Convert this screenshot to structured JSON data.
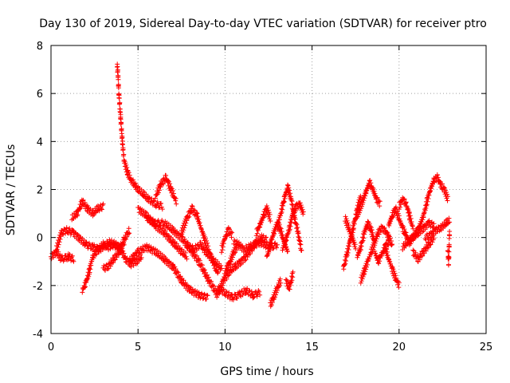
{
  "chart_data": {
    "type": "scatter",
    "title": "Day 130 of 2019, Sidereal Day-to-day VTEC variation (SDTVAR) for receiver ptro",
    "xlabel": "GPS time / hours",
    "ylabel": "SDTVAR / TECUs",
    "xlim": [
      0,
      25
    ],
    "ylim": [
      -4,
      8
    ],
    "xticks": [
      0,
      5,
      10,
      15,
      20,
      25
    ],
    "yticks": [
      -4,
      -2,
      0,
      2,
      4,
      6,
      8
    ],
    "grid": true,
    "marker": "+",
    "color": "#ff0000",
    "segments": [
      {
        "name": "s1",
        "x": [
          0.0,
          0.3,
          0.6,
          1.0,
          1.3
        ],
        "y": [
          -0.8,
          -0.6,
          -0.9,
          -0.8,
          -0.9
        ]
      },
      {
        "name": "s2",
        "x": [
          0.3,
          0.6,
          0.9,
          1.3,
          1.6,
          2.0,
          2.4,
          2.8
        ],
        "y": [
          -0.5,
          0.2,
          0.3,
          0.2,
          0.0,
          -0.3,
          -0.4,
          -0.5
        ]
      },
      {
        "name": "s3",
        "x": [
          1.2,
          1.5,
          1.8,
          2.1,
          2.4,
          2.7,
          3.0
        ],
        "y": [
          0.8,
          1.0,
          1.5,
          1.2,
          1.0,
          1.2,
          1.3
        ]
      },
      {
        "name": "s4",
        "x": [
          1.8,
          2.0,
          2.2,
          2.4,
          2.7,
          3.0,
          3.3,
          3.6,
          3.9,
          4.2
        ],
        "y": [
          -2.2,
          -1.9,
          -1.4,
          -0.8,
          -0.5,
          -0.3,
          -0.4,
          -0.3,
          -0.4,
          -0.3
        ]
      },
      {
        "name": "s5",
        "x": [
          2.8,
          3.1,
          3.4,
          3.7,
          4.0,
          4.3,
          4.6,
          4.9,
          5.2
        ],
        "y": [
          -0.5,
          -0.3,
          -0.2,
          -0.3,
          -0.5,
          -0.9,
          -1.1,
          -1.0,
          -0.8
        ]
      },
      {
        "name": "s6",
        "x": [
          3.8,
          3.85,
          3.9,
          4.0,
          4.1,
          4.2,
          4.4,
          4.6,
          4.8,
          5.0,
          5.3,
          5.6,
          6.0,
          6.4
        ],
        "y": [
          7.2,
          6.8,
          6.0,
          5.0,
          4.0,
          3.2,
          2.7,
          2.4,
          2.2,
          2.0,
          1.8,
          1.6,
          1.4,
          1.3
        ]
      },
      {
        "name": "s7",
        "x": [
          3.0,
          3.3,
          3.6,
          3.9,
          4.2,
          4.5
        ],
        "y": [
          -1.3,
          -1.2,
          -0.9,
          -0.6,
          -0.1,
          0.3
        ]
      },
      {
        "name": "s8",
        "x": [
          5.0,
          5.5,
          6.0,
          6.5,
          7.0,
          7.5,
          7.8
        ],
        "y": [
          1.2,
          0.9,
          0.5,
          0.2,
          -0.2,
          -0.6,
          -0.8
        ]
      },
      {
        "name": "s9",
        "x": [
          5.5,
          6.0,
          6.5,
          7.0,
          7.5,
          8.0,
          8.5,
          9.0,
          9.5
        ],
        "y": [
          0.8,
          0.6,
          0.6,
          0.3,
          0.0,
          -0.5,
          -1.0,
          -1.7,
          -2.3
        ]
      },
      {
        "name": "s10",
        "x": [
          6.0,
          6.3,
          6.6,
          6.9,
          7.2
        ],
        "y": [
          1.7,
          2.2,
          2.5,
          2.0,
          1.5
        ]
      },
      {
        "name": "s11",
        "x": [
          4.5,
          5.0,
          5.5,
          6.0,
          6.5,
          7.0,
          7.5,
          8.0,
          8.5,
          9.0
        ],
        "y": [
          -1.0,
          -0.6,
          -0.4,
          -0.6,
          -0.9,
          -1.2,
          -1.8,
          -2.2,
          -2.4,
          -2.5
        ]
      },
      {
        "name": "s12",
        "x": [
          7.5,
          7.8,
          8.1,
          8.4,
          8.7,
          9.0,
          9.3,
          9.6
        ],
        "y": [
          0.2,
          0.8,
          1.2,
          0.9,
          0.2,
          -0.4,
          -1.0,
          -1.5
        ]
      },
      {
        "name": "s13",
        "x": [
          7.8,
          8.2,
          8.6,
          9.0,
          9.4,
          9.8
        ],
        "y": [
          -0.3,
          -0.5,
          -0.3,
          -0.7,
          -1.0,
          -1.3
        ]
      },
      {
        "name": "s14",
        "x": [
          9.5,
          9.7,
          9.9,
          10.1,
          10.3,
          10.5,
          10.7
        ],
        "y": [
          -2.4,
          -2.2,
          -1.8,
          -1.3,
          -1.0,
          -0.6,
          -0.4
        ]
      },
      {
        "name": "s15",
        "x": [
          9.6,
          10.0,
          10.4,
          10.8,
          11.2,
          11.6,
          12.0
        ],
        "y": [
          -2.1,
          -2.3,
          -2.5,
          -2.4,
          -2.2,
          -2.4,
          -2.3
        ]
      },
      {
        "name": "s16",
        "x": [
          10.0,
          10.3,
          10.6,
          10.9,
          11.2,
          11.5,
          11.8,
          12.1,
          12.4
        ],
        "y": [
          -1.7,
          -1.4,
          -1.2,
          -1.0,
          -0.8,
          -0.5,
          -0.2,
          0.0,
          -0.1
        ]
      },
      {
        "name": "s17",
        "x": [
          9.8,
          10.0,
          10.2,
          10.4
        ],
        "y": [
          -0.5,
          0.0,
          0.3,
          0.1
        ]
      },
      {
        "name": "s18",
        "x": [
          10.5,
          10.8,
          11.1,
          11.4,
          11.7,
          12.0,
          12.3,
          12.6,
          13.0
        ],
        "y": [
          -0.2,
          -0.3,
          -0.5,
          -0.4,
          -0.3,
          -0.2,
          -0.3,
          -0.4,
          -0.3
        ]
      },
      {
        "name": "s19",
        "x": [
          11.8,
          12.0,
          12.2,
          12.4,
          12.6
        ],
        "y": [
          0.2,
          0.5,
          0.9,
          1.2,
          0.8
        ]
      },
      {
        "name": "s20",
        "x": [
          12.4,
          12.6,
          12.8,
          13.0,
          13.2,
          13.4,
          13.6
        ],
        "y": [
          -0.8,
          -0.3,
          0.2,
          0.6,
          0.3,
          -0.2,
          -0.6
        ]
      },
      {
        "name": "s21",
        "x": [
          12.6,
          12.8,
          13.0,
          13.2
        ],
        "y": [
          -2.8,
          -2.5,
          -2.1,
          -1.8
        ]
      },
      {
        "name": "s22",
        "x": [
          13.0,
          13.2,
          13.4,
          13.6,
          13.8,
          14.0,
          14.2,
          14.4
        ],
        "y": [
          0.4,
          1.0,
          1.6,
          2.1,
          1.6,
          0.8,
          0.2,
          -0.6
        ]
      },
      {
        "name": "s23",
        "x": [
          13.3,
          13.5,
          13.7,
          13.9,
          14.1,
          14.3,
          14.5
        ],
        "y": [
          -0.5,
          -0.1,
          0.4,
          1.0,
          1.3,
          1.4,
          1.0
        ]
      },
      {
        "name": "s24",
        "x": [
          13.5,
          13.7,
          13.9
        ],
        "y": [
          -1.8,
          -2.1,
          -1.5
        ]
      },
      {
        "name": "s25",
        "x": [
          16.8,
          17.0,
          17.2,
          17.4,
          17.6,
          17.8
        ],
        "y": [
          -1.3,
          -0.7,
          -0.1,
          0.5,
          1.2,
          1.7
        ]
      },
      {
        "name": "s26",
        "x": [
          16.9,
          17.1,
          17.3,
          17.5
        ],
        "y": [
          0.8,
          0.4,
          0.0,
          -0.4
        ]
      },
      {
        "name": "s27",
        "x": [
          17.5,
          17.7,
          17.9,
          18.1,
          18.3,
          18.5,
          18.7,
          18.9
        ],
        "y": [
          0.8,
          1.1,
          1.5,
          1.9,
          2.3,
          2.0,
          1.6,
          1.4
        ]
      },
      {
        "name": "s28",
        "x": [
          17.6,
          17.8,
          18.0,
          18.2,
          18.4,
          18.6
        ],
        "y": [
          -0.8,
          -0.4,
          0.2,
          0.6,
          0.3,
          -0.2
        ]
      },
      {
        "name": "s29",
        "x": [
          17.8,
          18.0,
          18.2,
          18.4,
          18.6,
          18.8,
          19.0,
          19.2,
          19.4,
          19.6
        ],
        "y": [
          -1.8,
          -1.4,
          -1.0,
          -0.6,
          -0.2,
          0.2,
          0.4,
          0.3,
          0.0,
          -0.3
        ]
      },
      {
        "name": "s30",
        "x": [
          18.6,
          18.8,
          19.0,
          19.2,
          19.4
        ],
        "y": [
          -0.6,
          -1.0,
          -0.7,
          -0.4,
          -0.2
        ]
      },
      {
        "name": "s31",
        "x": [
          19.2,
          19.4,
          19.6,
          19.8,
          20.0
        ],
        "y": [
          -0.4,
          -0.9,
          -1.3,
          -1.7,
          -2.0
        ]
      },
      {
        "name": "s32",
        "x": [
          19.4,
          19.6,
          19.8,
          20.0,
          20.2,
          20.4,
          20.6,
          20.8,
          21.0
        ],
        "y": [
          0.5,
          0.9,
          1.2,
          0.8,
          0.4,
          0.1,
          -0.2,
          0.0,
          0.2
        ]
      },
      {
        "name": "s33",
        "x": [
          20.0,
          20.2,
          20.4,
          20.6,
          20.8
        ],
        "y": [
          1.3,
          1.6,
          1.4,
          0.9,
          0.4
        ]
      },
      {
        "name": "s34",
        "x": [
          20.2,
          20.5,
          20.8,
          21.1,
          21.4,
          21.7,
          22.0
        ],
        "y": [
          -0.4,
          -0.2,
          0.0,
          0.2,
          0.4,
          0.6,
          0.5
        ]
      },
      {
        "name": "s35",
        "x": [
          21.0,
          21.2,
          21.4,
          21.6,
          21.8,
          22.0,
          22.2,
          22.4,
          22.6,
          22.8
        ],
        "y": [
          0.2,
          0.5,
          0.9,
          1.5,
          2.0,
          2.4,
          2.5,
          2.2,
          2.0,
          1.6
        ]
      },
      {
        "name": "s36",
        "x": [
          21.5,
          21.8,
          22.1,
          22.4,
          22.7,
          22.9
        ],
        "y": [
          0.0,
          0.1,
          0.3,
          0.4,
          0.6,
          0.7
        ]
      },
      {
        "name": "s37",
        "x": [
          20.8,
          21.1,
          21.4,
          21.7,
          22.0
        ],
        "y": [
          -0.6,
          -0.9,
          -0.6,
          -0.3,
          0.0
        ]
      },
      {
        "name": "s38",
        "x": [
          22.8,
          22.85,
          22.9
        ],
        "y": [
          -0.6,
          -1.1,
          0.3
        ]
      }
    ]
  }
}
